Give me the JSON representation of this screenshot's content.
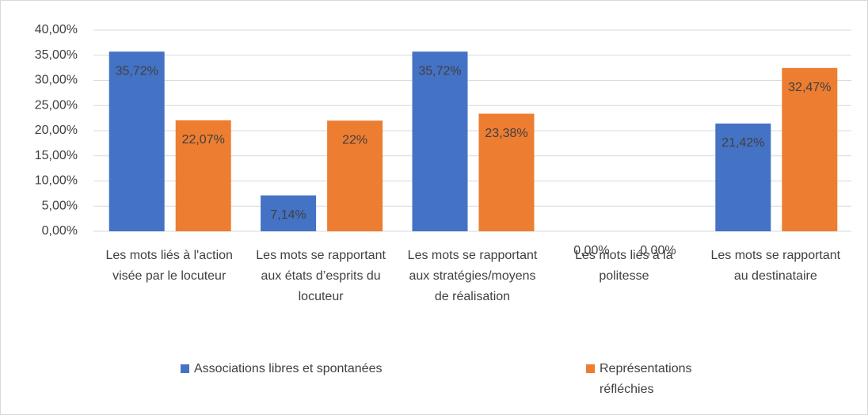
{
  "chart_data": {
    "type": "bar",
    "categories": [
      "Les mots liés à l'action visée par le locuteur",
      "Les mots se rapportant aux états d’esprits du locuteur",
      "Les mots se rapportant aux stratégies/moyens de réalisation",
      "Les mots liés à la politesse",
      "Les mots se rapportant au destinataire"
    ],
    "series": [
      {
        "name": "Associations libres et spontanées",
        "color": "#4472c4",
        "values": [
          35.72,
          7.14,
          35.72,
          0,
          21.42
        ],
        "value_labels": [
          "35,72%",
          "7,14%",
          "35,72%",
          "0,00%",
          "21,42%"
        ]
      },
      {
        "name": "Représentations réfléchies",
        "color": "#ed7d31",
        "values": [
          22.07,
          22,
          23.38,
          0,
          32.47
        ],
        "value_labels": [
          "22,07%",
          "22%",
          "23,38%",
          "0,00%",
          "32,47%"
        ]
      }
    ],
    "ylim": [
      0,
      40
    ],
    "yticks": [
      {
        "value": 0,
        "label": "0,00%"
      },
      {
        "value": 5,
        "label": "5,00%"
      },
      {
        "value": 10,
        "label": "10,00%"
      },
      {
        "value": 15,
        "label": "15,00%"
      },
      {
        "value": 20,
        "label": "20,00%"
      },
      {
        "value": 25,
        "label": "25,00%"
      },
      {
        "value": 30,
        "label": "30,00%"
      },
      {
        "value": 35,
        "label": "35,00%"
      },
      {
        "value": 40,
        "label": "40,00%"
      }
    ],
    "grid": true,
    "legend": "bottom"
  }
}
